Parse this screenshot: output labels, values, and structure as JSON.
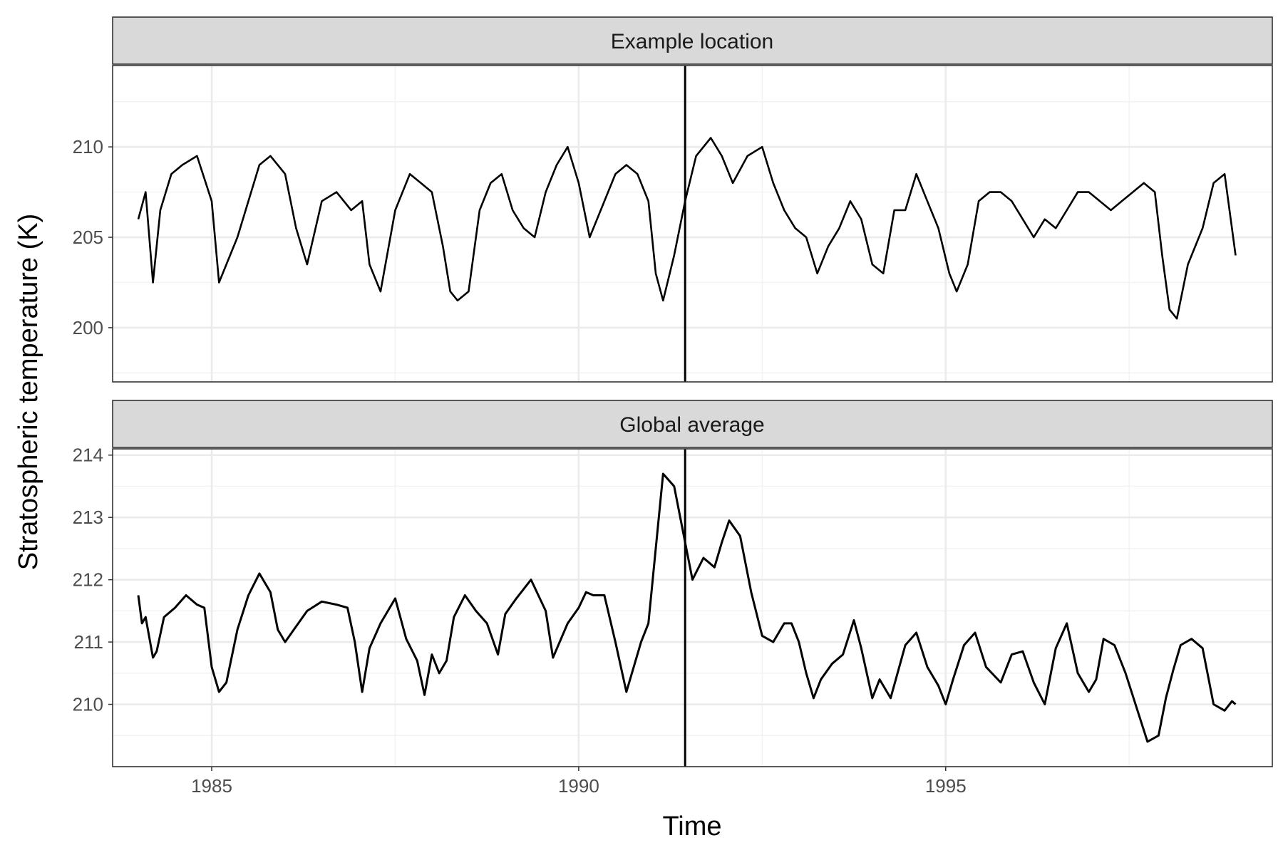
{
  "chart_data": {
    "type": "line",
    "xlabel": "Time",
    "ylabel": "Stratospheric temperature (K)",
    "xlim": [
      1983.65,
      1999.45
    ],
    "x_ticks": [
      1985,
      1990,
      1995
    ],
    "x_tick_labels": [
      "1985",
      "1990",
      "1995"
    ],
    "vline_x": 1991.45,
    "grid": true,
    "legend": "none",
    "panels": [
      {
        "title": "Example location",
        "ylim": [
          197.0,
          214.5
        ],
        "y_ticks": [
          200,
          205,
          210
        ],
        "y_tick_labels": [
          "200",
          "205",
          "210"
        ],
        "series": [
          {
            "x": [
              1984.0,
              1984.1,
              1984.2,
              1984.3,
              1984.45,
              1984.6,
              1984.8,
              1985.0,
              1985.1,
              1985.2,
              1985.35,
              1985.5,
              1985.65,
              1985.8,
              1986.0,
              1986.15,
              1986.3,
              1986.5,
              1986.7,
              1986.9,
              1987.05,
              1987.15,
              1987.3,
              1987.5,
              1987.7,
              1987.85,
              1988.0,
              1988.15,
              1988.25,
              1988.35,
              1988.5,
              1988.65,
              1988.8,
              1988.95,
              1989.1,
              1989.25,
              1989.4,
              1989.55,
              1989.7,
              1989.85,
              1990.0,
              1990.15,
              1990.3,
              1990.5,
              1990.65,
              1990.8,
              1990.95,
              1991.05,
              1991.15,
              1991.3,
              1991.45,
              1991.6,
              1991.8,
              1991.95,
              1992.1,
              1992.3,
              1992.5,
              1992.65,
              1992.8,
              1992.95,
              1993.1,
              1993.25,
              1993.4,
              1993.55,
              1993.7,
              1993.85,
              1994.0,
              1994.15,
              1994.3,
              1994.45,
              1994.6,
              1994.75,
              1994.9,
              1995.05,
              1995.15,
              1995.3,
              1995.45,
              1995.6,
              1995.75,
              1995.9,
              1996.05,
              1996.2,
              1996.35,
              1996.5,
              1996.65,
              1996.8,
              1996.95,
              1997.1,
              1997.25,
              1997.4,
              1997.55,
              1997.7,
              1997.85,
              1997.95,
              1998.05,
              1998.15,
              1998.3,
              1998.5,
              1998.65,
              1998.8,
              1998.95
            ],
            "y": [
              206.0,
              207.5,
              202.5,
              206.5,
              208.5,
              209.0,
              209.5,
              207.0,
              202.5,
              203.5,
              205.0,
              207.0,
              209.0,
              209.5,
              208.5,
              205.5,
              203.5,
              207.0,
              207.5,
              206.5,
              207.0,
              203.5,
              202.0,
              206.5,
              208.5,
              208.0,
              207.5,
              204.5,
              202.0,
              201.5,
              202.0,
              206.5,
              208.0,
              208.5,
              206.5,
              205.5,
              205.0,
              207.5,
              209.0,
              210.0,
              208.0,
              205.0,
              206.5,
              208.5,
              209.0,
              208.5,
              207.0,
              203.0,
              201.5,
              204.0,
              207.0,
              209.5,
              210.5,
              209.5,
              208.0,
              209.5,
              210.0,
              208.0,
              206.5,
              205.5,
              205.0,
              203.0,
              204.5,
              205.5,
              207.0,
              206.0,
              203.5,
              203.0,
              206.5,
              206.5,
              208.5,
              207.0,
              205.5,
              203.0,
              202.0,
              203.5,
              207.0,
              207.5,
              207.5,
              207.0,
              206.0,
              205.0,
              206.0,
              205.5,
              206.5,
              207.5,
              207.5,
              207.0,
              206.5,
              207.0,
              207.5,
              208.0,
              207.5,
              204.0,
              201.0,
              200.5,
              203.5,
              205.5,
              208.0,
              208.5,
              204.0
            ]
          }
        ]
      },
      {
        "title": "Global average",
        "ylim": [
          209.0,
          214.1
        ],
        "y_ticks": [
          210,
          211,
          212,
          213,
          214
        ],
        "y_tick_labels": [
          "210",
          "211",
          "212",
          "213",
          "214"
        ],
        "series": [
          {
            "x": [
              1984.0,
              1984.05,
              1984.1,
              1984.2,
              1984.25,
              1984.35,
              1984.5,
              1984.65,
              1984.8,
              1984.9,
              1985.0,
              1985.1,
              1985.2,
              1985.35,
              1985.5,
              1985.65,
              1985.8,
              1985.9,
              1986.0,
              1986.15,
              1986.3,
              1986.5,
              1986.7,
              1986.85,
              1986.95,
              1987.05,
              1987.15,
              1987.3,
              1987.5,
              1987.65,
              1987.8,
              1987.9,
              1988.0,
              1988.1,
              1988.2,
              1988.3,
              1988.45,
              1988.6,
              1988.75,
              1988.9,
              1989.0,
              1989.15,
              1989.35,
              1989.55,
              1989.65,
              1989.85,
              1990.0,
              1990.1,
              1990.2,
              1990.35,
              1990.5,
              1990.65,
              1990.85,
              1990.95,
              1991.05,
              1991.15,
              1991.3,
              1991.45,
              1991.55,
              1991.7,
              1991.85,
              1991.95,
              1992.05,
              1992.2,
              1992.35,
              1992.5,
              1992.65,
              1992.8,
              1992.9,
              1993.0,
              1993.1,
              1993.2,
              1993.3,
              1993.45,
              1993.6,
              1993.75,
              1993.85,
              1994.0,
              1994.1,
              1994.25,
              1994.45,
              1994.6,
              1994.75,
              1994.9,
              1995.0,
              1995.1,
              1995.25,
              1995.4,
              1995.55,
              1995.75,
              1995.9,
              1996.05,
              1996.2,
              1996.35,
              1996.5,
              1996.65,
              1996.8,
              1996.95,
              1997.05,
              1997.15,
              1997.3,
              1997.45,
              1997.6,
              1997.75,
              1997.9,
              1998.0,
              1998.1,
              1998.2,
              1998.35,
              1998.5,
              1998.65,
              1998.8,
              1998.9,
              1998.95
            ],
            "y": [
              211.75,
              211.3,
              211.4,
              210.75,
              210.85,
              211.4,
              211.55,
              211.75,
              211.6,
              211.55,
              210.6,
              210.2,
              210.35,
              211.2,
              211.75,
              212.1,
              211.8,
              211.2,
              211.0,
              211.25,
              211.5,
              211.65,
              211.6,
              211.55,
              211.0,
              210.2,
              210.9,
              211.3,
              211.7,
              211.05,
              210.7,
              210.15,
              210.8,
              210.5,
              210.7,
              211.4,
              211.75,
              211.5,
              211.3,
              210.8,
              211.45,
              211.7,
              212.0,
              211.5,
              210.75,
              211.3,
              211.55,
              211.8,
              211.75,
              211.75,
              211.0,
              210.2,
              211.0,
              211.3,
              212.5,
              213.7,
              213.5,
              212.6,
              212.0,
              212.35,
              212.2,
              212.6,
              212.95,
              212.7,
              211.8,
              211.1,
              211.0,
              211.3,
              211.3,
              211.0,
              210.5,
              210.1,
              210.4,
              210.65,
              210.8,
              211.35,
              210.9,
              210.1,
              210.4,
              210.1,
              210.95,
              211.15,
              210.6,
              210.3,
              210.0,
              210.4,
              210.95,
              211.15,
              210.6,
              210.35,
              210.8,
              210.85,
              210.35,
              210.0,
              210.9,
              211.3,
              210.5,
              210.2,
              210.4,
              211.05,
              210.95,
              210.5,
              209.95,
              209.4,
              209.5,
              210.1,
              210.55,
              210.95,
              211.05,
              210.9,
              210.0,
              209.9,
              210.05,
              210.0
            ]
          }
        ]
      }
    ]
  }
}
